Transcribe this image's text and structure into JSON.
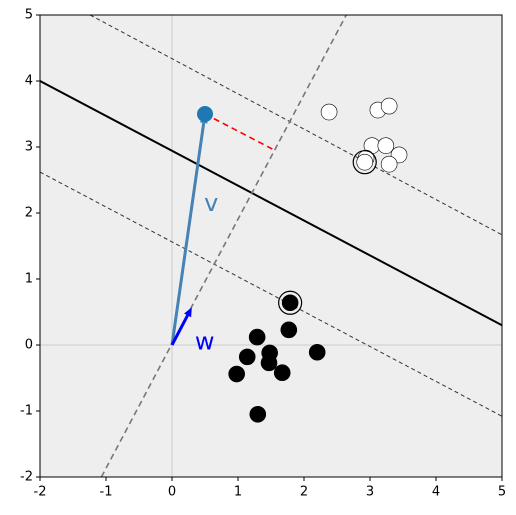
{
  "chart_data": {
    "type": "scatter",
    "xlim": [
      -2,
      5
    ],
    "ylim": [
      -2,
      5
    ],
    "xticks": [
      -2,
      -1,
      0,
      1,
      2,
      3,
      4,
      5
    ],
    "yticks": [
      -2,
      -1,
      0,
      1,
      2,
      3,
      4,
      5
    ],
    "background": "#eeeeee",
    "series": [
      {
        "color": "#ffffff",
        "x": [
          2.38,
          3.12,
          3.29,
          3.03,
          3.24,
          2.94,
          3.44,
          3.29,
          2.92
        ],
        "values": [
          3.53,
          3.56,
          3.62,
          3.02,
          3.02,
          2.83,
          2.88,
          2.74,
          2.77
        ]
      },
      {
        "color": "#000000",
        "x": [
          1.79,
          1.29,
          1.77,
          1.14,
          1.48,
          1.47,
          2.2,
          0.98,
          1.67,
          1.3
        ],
        "values": [
          0.64,
          0.12,
          0.23,
          -0.18,
          -0.12,
          -0.27,
          -0.11,
          -0.44,
          -0.42,
          -1.05
        ]
      }
    ],
    "support_vectors": {
      "x": [
        2.92,
        1.79
      ],
      "y": [
        2.77,
        0.64
      ]
    },
    "lines": [
      {
        "x": [
          -2,
          5
        ],
        "y": [
          4.0,
          0.3
        ],
        "color": "#000000",
        "style": "solid"
      },
      {
        "x": [
          -1.24,
          5
        ],
        "y": [
          5,
          1.67
        ],
        "color": "#333333",
        "style": "dashed"
      },
      {
        "x": [
          -2,
          5
        ],
        "y": [
          2.62,
          -1.08
        ],
        "color": "#333333",
        "style": "dashed"
      },
      {
        "x": [
          -1.07,
          2.64
        ],
        "y": [
          -2,
          5
        ],
        "color": "#777777",
        "style": "dashed"
      },
      {
        "x": [
          0.5,
          1.52
        ],
        "y": [
          3.5,
          2.97
        ],
        "color": "#ff0000",
        "style": "dashed"
      }
    ],
    "vectors": [
      {
        "name": "v",
        "x": 0.5,
        "y": 3.5,
        "color": "#4682b4",
        "point": "#1f77b4"
      },
      {
        "name": "w",
        "x": 0.3,
        "y": 0.57,
        "color": "#0000ff"
      }
    ]
  }
}
